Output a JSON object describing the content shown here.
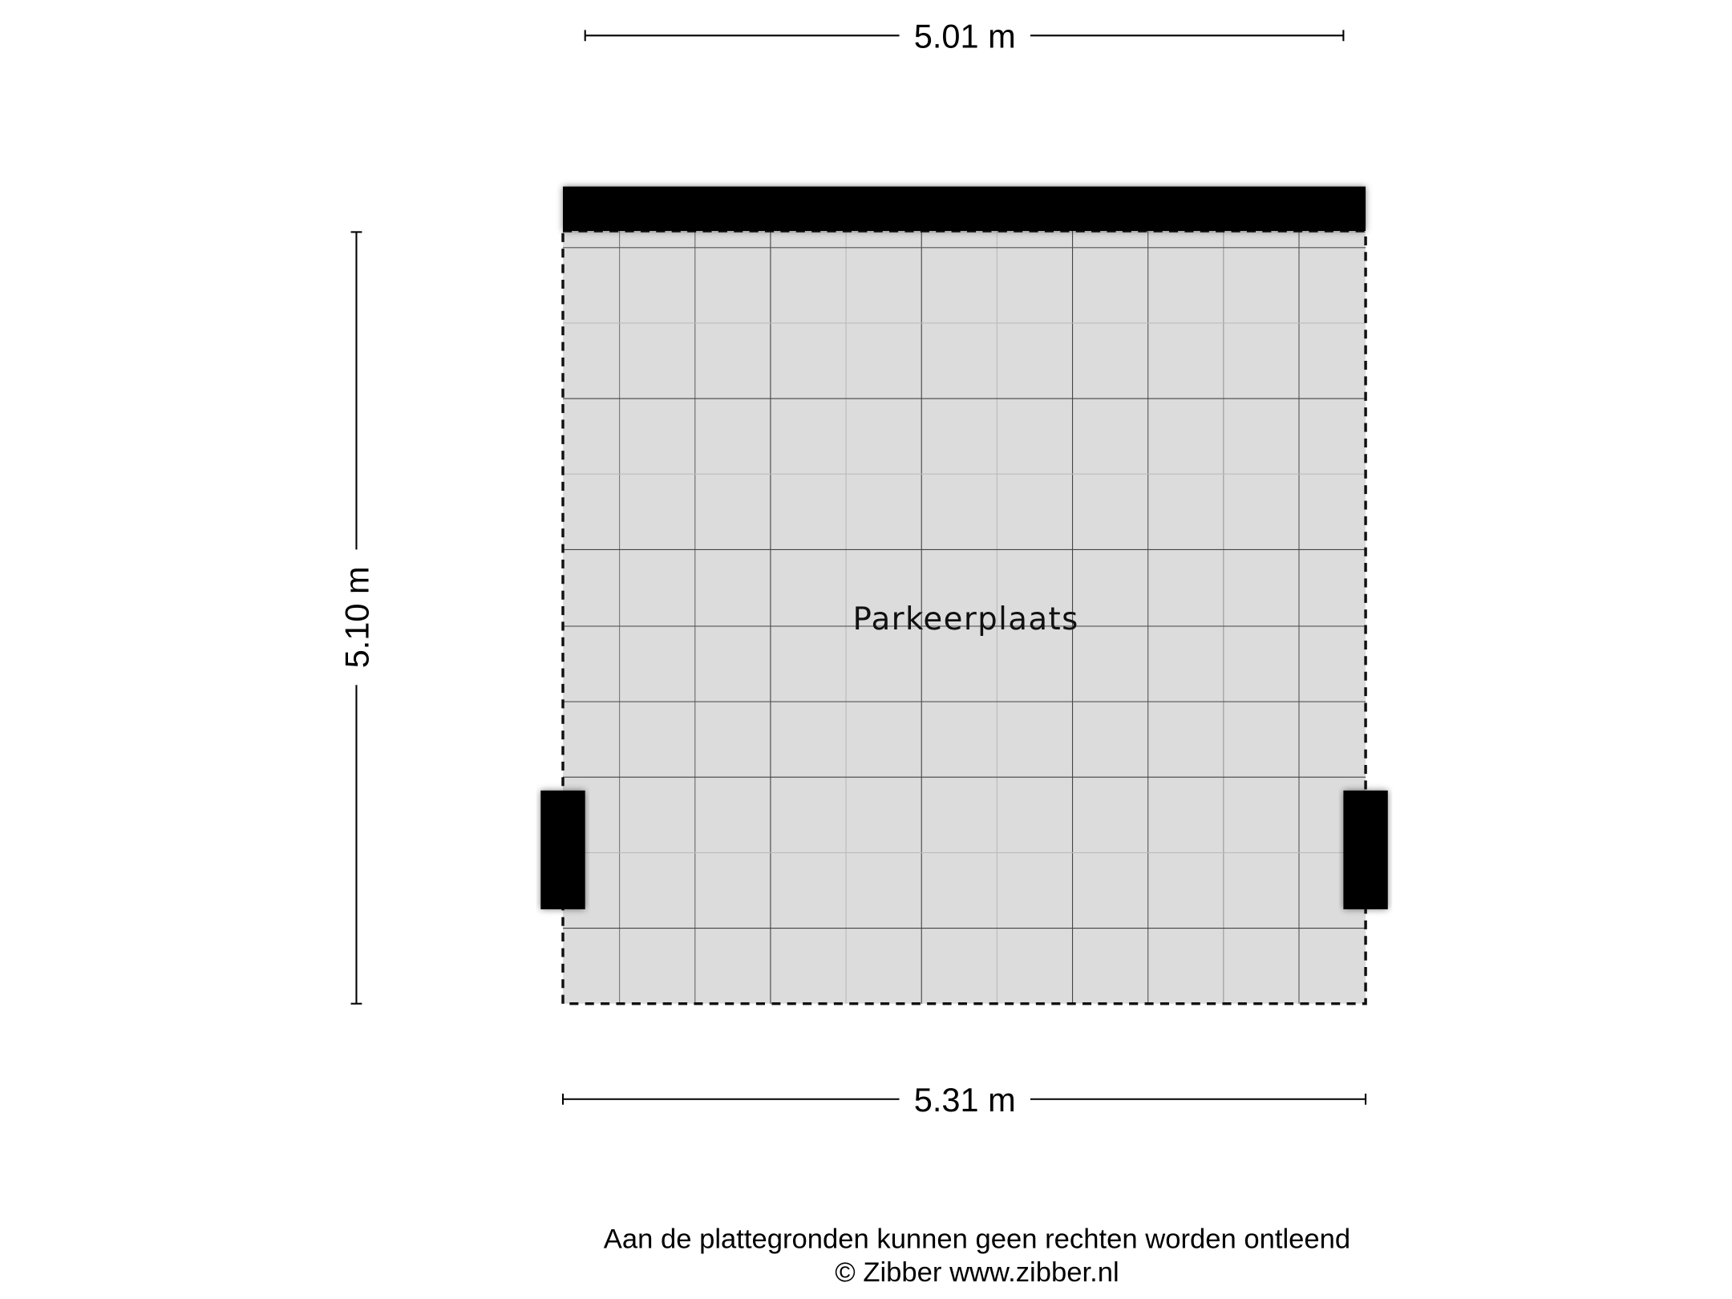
{
  "dimensions": {
    "top_width": "5.01 m",
    "bottom_width": "5.31 m",
    "left_height": "5.10 m"
  },
  "room": {
    "label": "Parkeerplaats",
    "fill_color": "#dcdcdc"
  },
  "footer": {
    "disclaimer": "Aan de plattegronden kunnen geen rechten worden ontleend",
    "copyright": "© Zibber www.zibber.nl"
  }
}
